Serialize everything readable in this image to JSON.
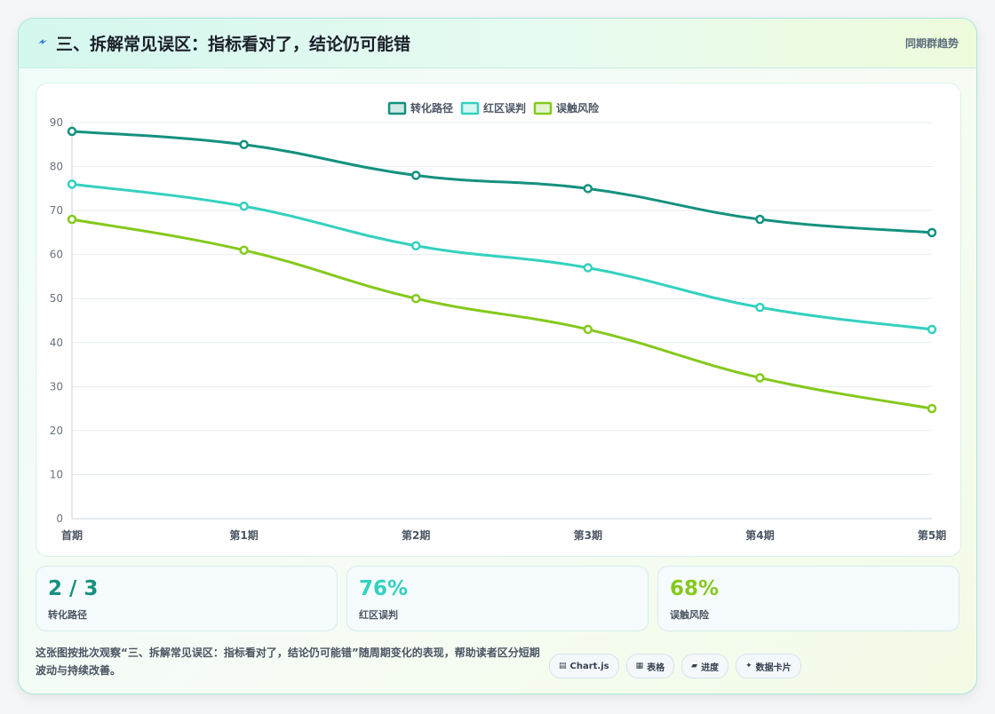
{
  "header": {
    "icon": "lightning-icon",
    "title": "三、拆解常见误区：指标看对了，结论仍可能错",
    "subtitle": "同期群趋势"
  },
  "chart_data": {
    "type": "line",
    "categories": [
      "首期",
      "第1期",
      "第2期",
      "第3期",
      "第4期",
      "第5期"
    ],
    "series": [
      {
        "name": "转化路径",
        "color": "#14917f",
        "values": [
          88,
          85,
          78,
          75,
          68,
          65
        ]
      },
      {
        "name": "红区误判",
        "color": "#33d1bf",
        "values": [
          76,
          71,
          62,
          57,
          48,
          43
        ]
      },
      {
        "name": "误触风险",
        "color": "#84c91c",
        "values": [
          68,
          61,
          50,
          43,
          32,
          25
        ]
      }
    ],
    "ylim": [
      0,
      90
    ],
    "yticks": [
      0,
      10,
      20,
      30,
      40,
      50,
      60,
      70,
      80,
      90
    ],
    "legend": "top-center",
    "grid": true
  },
  "kpis": [
    {
      "value": "2 / 3",
      "label": "转化路径",
      "color": "#14917f"
    },
    {
      "value": "76%",
      "label": "红区误判",
      "color": "#33d1bf"
    },
    {
      "value": "68%",
      "label": "误触风险",
      "color": "#84c91c"
    }
  ],
  "description": "这张图按批次观察“三、拆解常见误区：指标看对了，结论仍可能错”随周期变化的表现，帮助读者区分短期波动与持续改善。",
  "tags": [
    {
      "icon": "chart-icon",
      "glyph": "▤",
      "label": "Chart.js"
    },
    {
      "icon": "table-icon",
      "glyph": "▦",
      "label": "表格"
    },
    {
      "icon": "progress-icon",
      "glyph": "▰",
      "label": "进度"
    },
    {
      "icon": "sparkle-icon",
      "glyph": "✦",
      "label": "数据卡片"
    }
  ]
}
